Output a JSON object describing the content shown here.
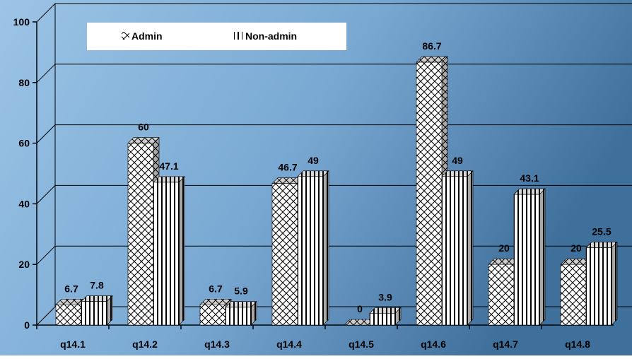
{
  "chart_data": {
    "type": "bar",
    "categories": [
      "q14.1",
      "q14.2",
      "q14.3",
      "q14.4",
      "q14.5",
      "q14.6",
      "q14.7",
      "q14.8"
    ],
    "series": [
      {
        "name": "Admin",
        "pattern": "crosshatch",
        "values": [
          6.7,
          60,
          6.7,
          46.7,
          0,
          86.7,
          20,
          20
        ]
      },
      {
        "name": "Non-admin",
        "pattern": "vertical-stripes",
        "values": [
          7.8,
          47.1,
          5.9,
          49,
          3.9,
          49,
          43.1,
          25.5
        ]
      }
    ],
    "data_labels": [
      [
        "6.7",
        "60",
        "6.7",
        "46.7",
        "0",
        "86.7",
        "20",
        "20"
      ],
      [
        "7.8",
        "47.1",
        "5.9",
        "49",
        "3.9",
        "49",
        "43.1",
        "25.5"
      ]
    ],
    "y_ticks": [
      "0",
      "20",
      "40",
      "60",
      "80",
      "100"
    ],
    "ylim": [
      0,
      100
    ],
    "title": "",
    "xlabel": "",
    "ylabel": "",
    "grid": true,
    "legend_position": "top-left",
    "colors": {
      "background_light": "#9cc4e6",
      "background_dark": "#3f6f9b",
      "bar_fill": "#ffffff",
      "bar_pattern": "#000000",
      "bar_side": "#9a9a9a",
      "bar_top": "#cfcfcf",
      "text": "#000000"
    }
  }
}
